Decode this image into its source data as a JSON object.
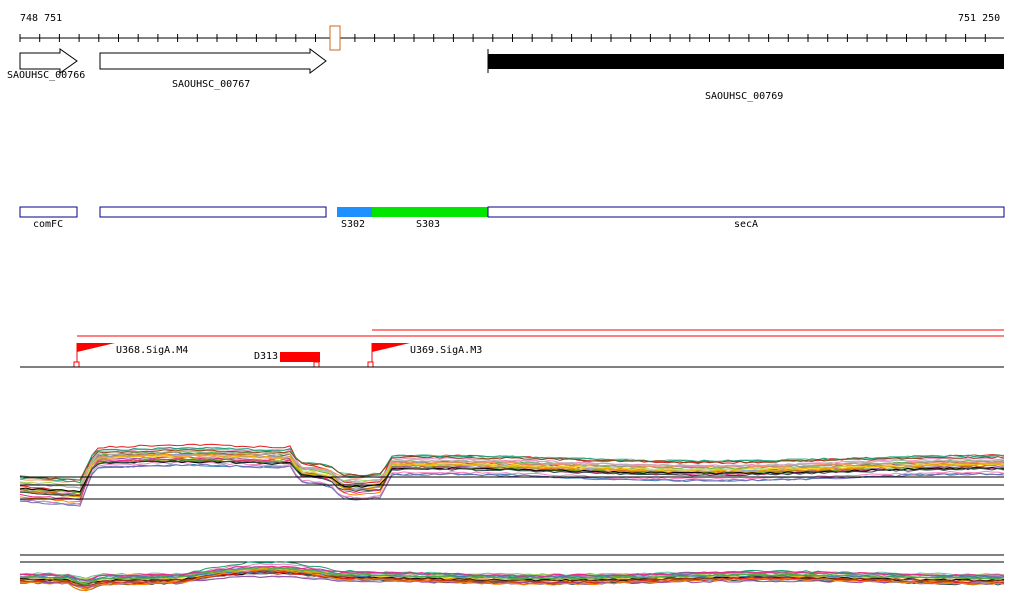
{
  "ruler": {
    "start_label": "748 751",
    "end_label": "751 250",
    "start": 748751,
    "end": 751250
  },
  "genes": [
    {
      "id": "g766",
      "label": "SAOUHSC_00766",
      "strand": "+",
      "style": "outline"
    },
    {
      "id": "g767",
      "label": "SAOUHSC_00767",
      "strand": "+",
      "style": "outline"
    },
    {
      "id": "g769",
      "label": "SAOUHSC_00769",
      "strand": "+",
      "style": "filled"
    }
  ],
  "features": [
    {
      "id": "comfc",
      "label": "comFC",
      "color": "#ffffff",
      "border": "#00008b"
    },
    {
      "id": "unnamed",
      "label": "",
      "color": "#ffffff",
      "border": "#00008b"
    },
    {
      "id": "s302",
      "label": "S302",
      "color": "#1e90ff",
      "border": "#1e90ff"
    },
    {
      "id": "s303",
      "label": "S303",
      "color": "#00e600",
      "border": "#00e600"
    },
    {
      "id": "seca",
      "label": "secA",
      "color": "#ffffff",
      "border": "#00008b"
    }
  ],
  "promoters": [
    {
      "id": "u368",
      "label": "U368.SigA.M4"
    },
    {
      "id": "u369",
      "label": "U369.SigA.M3"
    }
  ],
  "terminators": [
    {
      "id": "d313",
      "label": "D313"
    }
  ],
  "colors": {
    "regulatory": "#ff0000",
    "gene_outline": "#000000",
    "feature_border": "#00008b",
    "baseline": "#000000"
  },
  "expression_tracks": [
    {
      "id": "track1",
      "description": "upper expression profiles"
    },
    {
      "id": "track2",
      "description": "lower expression profiles"
    }
  ]
}
